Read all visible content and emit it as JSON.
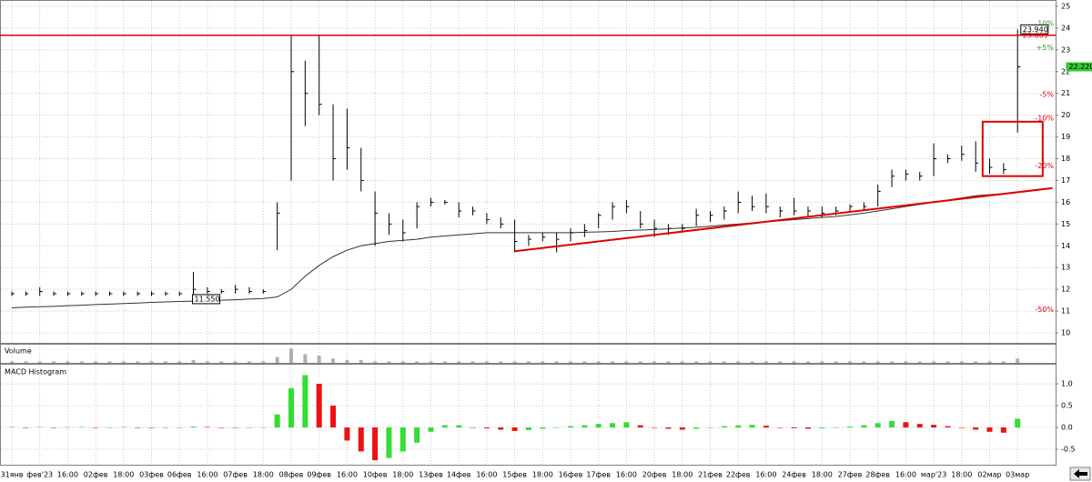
{
  "chart_data": [
    {
      "type": "ohlc",
      "categories": [
        "31янв",
        null,
        "фев'23",
        null,
        "16:00",
        null,
        "02фев",
        null,
        "18:00",
        null,
        "03фев",
        null,
        "06фев",
        null,
        "16:00",
        null,
        "07фев",
        null,
        "18:00",
        null,
        "08фев",
        null,
        "09фев",
        null,
        "16:00",
        null,
        "10фев",
        null,
        "18:00",
        null,
        "13фев",
        null,
        "14фев",
        null,
        "16:00",
        null,
        "15фев",
        null,
        "18:00",
        null,
        "16фев",
        null,
        "17фев",
        null,
        "16:00",
        null,
        "20фев",
        null,
        "18:00",
        null,
        "21фев",
        null,
        "22фев",
        null,
        "16:00",
        null,
        "24фев",
        null,
        "18:00",
        null,
        "27фев",
        null,
        "28фев",
        null,
        "16:00",
        null,
        "мар'23",
        null,
        "18:00",
        null,
        "02мар",
        null,
        "03мар"
      ],
      "high": [
        11.9,
        11.9,
        12.1,
        11.9,
        11.9,
        11.9,
        11.9,
        11.9,
        11.9,
        11.9,
        11.9,
        11.9,
        11.9,
        12.8,
        12.1,
        12.0,
        12.2,
        12.1,
        12.0,
        16.0,
        23.7,
        22.5,
        23.7,
        20.5,
        20.3,
        18.5,
        16.5,
        15.5,
        15.2,
        16.0,
        16.2,
        16.1,
        16.0,
        15.8,
        15.5,
        15.3,
        15.2,
        14.5,
        14.6,
        14.6,
        14.8,
        15.0,
        15.5,
        16.0,
        16.1,
        15.6,
        15.2,
        15.0,
        15.0,
        15.7,
        15.6,
        15.8,
        16.5,
        16.3,
        16.4,
        15.8,
        16.2,
        15.8,
        15.8,
        15.8,
        15.9,
        16.0,
        16.8,
        17.5,
        17.5,
        17.4,
        18.7,
        18.2,
        18.6,
        18.8,
        18.0,
        17.8,
        23.94
      ],
      "low": [
        11.7,
        11.7,
        11.7,
        11.7,
        11.7,
        11.7,
        11.7,
        11.7,
        11.7,
        11.7,
        11.7,
        11.7,
        11.7,
        11.6,
        11.8,
        11.8,
        11.8,
        11.8,
        11.8,
        13.8,
        17.0,
        19.5,
        20.0,
        17.0,
        17.5,
        16.5,
        14.0,
        14.5,
        14.2,
        14.8,
        15.8,
        15.9,
        15.3,
        15.4,
        15.0,
        14.8,
        13.7,
        14.0,
        14.2,
        13.7,
        14.2,
        14.4,
        14.8,
        15.2,
        15.5,
        14.8,
        14.4,
        14.5,
        14.6,
        14.9,
        15.1,
        15.2,
        15.5,
        15.6,
        15.5,
        15.3,
        15.4,
        15.3,
        15.3,
        15.4,
        15.6,
        15.6,
        15.8,
        16.7,
        17.0,
        17.0,
        17.2,
        17.8,
        17.9,
        17.4,
        17.3,
        17.3,
        19.2
      ],
      "close": [
        11.8,
        11.8,
        11.9,
        11.8,
        11.8,
        11.8,
        11.8,
        11.8,
        11.8,
        11.8,
        11.8,
        11.8,
        11.8,
        12.0,
        11.9,
        11.9,
        12.0,
        11.9,
        11.9,
        15.5,
        22.0,
        21.0,
        20.5,
        18.0,
        18.5,
        17.0,
        15.5,
        15.0,
        14.6,
        15.8,
        16.0,
        16.0,
        15.6,
        15.6,
        15.2,
        15.0,
        14.2,
        14.3,
        14.4,
        14.3,
        14.6,
        14.7,
        15.4,
        15.8,
        15.8,
        15.0,
        14.8,
        14.8,
        14.8,
        15.4,
        15.4,
        15.6,
        16.0,
        15.8,
        15.8,
        15.6,
        15.6,
        15.6,
        15.5,
        15.6,
        15.8,
        15.8,
        16.5,
        17.2,
        17.3,
        17.2,
        18.0,
        18.0,
        18.2,
        17.8,
        17.6,
        17.5,
        22.22
      ],
      "color": "#000000",
      "ma": [
        11.15,
        11.18,
        11.2,
        11.22,
        11.25,
        11.27,
        11.3,
        11.32,
        11.35,
        11.37,
        11.4,
        11.42,
        11.44,
        11.46,
        11.48,
        11.5,
        11.52,
        11.55,
        11.58,
        11.65,
        12.0,
        12.6,
        13.1,
        13.5,
        13.8,
        14.0,
        14.1,
        14.2,
        14.25,
        14.3,
        14.4,
        14.45,
        14.5,
        14.55,
        14.6,
        14.6,
        14.6,
        14.6,
        14.6,
        14.6,
        14.6,
        14.62,
        14.64,
        14.66,
        14.7,
        14.72,
        14.75,
        14.78,
        14.82,
        14.85,
        14.9,
        14.95,
        15.0,
        15.05,
        15.1,
        15.15,
        15.2,
        15.25,
        15.3,
        15.35,
        15.42,
        15.5,
        15.6,
        15.7,
        15.8,
        15.9,
        16.0,
        16.1,
        16.2,
        16.3,
        16.35,
        16.4,
        16.45
      ],
      "ma_color": "#333333",
      "ylim": [
        9.5,
        25.29
      ],
      "yticks": [
        10,
        11,
        12,
        13,
        14,
        15,
        16,
        17,
        18,
        19,
        20,
        21,
        22,
        23,
        24,
        25
      ],
      "grid": true,
      "hline": {
        "value": 23.669,
        "color": "#e00000"
      },
      "trend_line": {
        "points": [
          [
            36,
            13.75
          ],
          [
            74.5,
            16.65
          ]
        ],
        "color": "#e00000"
      },
      "box": {
        "x": [
          69.5,
          73.8
        ],
        "y": [
          17.2,
          19.7
        ],
        "color": "#e00000"
      },
      "levels": [
        {
          "value": 24.2,
          "label": "10%",
          "color": "#2a9a2a"
        },
        {
          "value": 23.1,
          "label": "+5%",
          "color": "#2a9a2a"
        },
        {
          "value": 20.94,
          "label": "-5%",
          "color": "#e00000"
        },
        {
          "value": 19.85,
          "label": "-10%",
          "color": "#e00000"
        },
        {
          "value": 17.67,
          "label": "-20%",
          "color": "#e00000"
        },
        {
          "value": 11.07,
          "label": "-50%",
          "color": "#e00000"
        }
      ],
      "price_labels": [
        {
          "value": 23.94,
          "label": "23.940",
          "at": 72.3,
          "style": "box"
        },
        {
          "value": 23.669,
          "label": "23.669",
          "at": 72.3,
          "style": "red"
        },
        {
          "value": 22.22,
          "label": "22.220",
          "at": 75.6,
          "style": "last"
        },
        {
          "value": 11.55,
          "label": "11.550",
          "at": 13,
          "style": "box"
        }
      ]
    },
    {
      "type": "bar",
      "title": "Volume",
      "values": [
        1,
        1,
        1,
        1,
        1,
        1,
        1,
        1,
        1,
        1,
        1,
        1,
        1,
        2,
        1,
        1,
        1,
        1,
        1,
        4,
        10,
        6,
        5,
        3,
        2,
        2,
        1,
        1,
        1,
        1,
        1,
        1,
        1,
        1,
        1,
        1,
        1,
        1,
        1,
        1,
        1,
        1,
        1,
        1,
        1,
        1,
        1,
        1,
        1,
        1,
        1,
        1,
        1,
        1,
        1,
        1,
        1,
        1,
        1,
        1,
        1,
        1,
        1,
        1,
        1,
        1,
        1,
        1,
        1,
        1,
        1,
        1,
        3
      ],
      "color": "#b0b0b0",
      "ylim": [
        0,
        12
      ]
    },
    {
      "type": "histogram",
      "title": "MACD Histogram",
      "values": [
        0.01,
        -0.01,
        0.01,
        0.0,
        0.01,
        0.01,
        -0.01,
        0.0,
        0.01,
        0.0,
        -0.01,
        0.0,
        0.0,
        0.02,
        0.01,
        0.0,
        -0.01,
        0.0,
        0.0,
        0.3,
        0.9,
        1.2,
        1.0,
        0.5,
        -0.3,
        -0.55,
        -0.75,
        -0.7,
        -0.55,
        -0.35,
        -0.1,
        0.05,
        0.05,
        0.0,
        -0.02,
        -0.05,
        -0.08,
        -0.06,
        -0.03,
        0.0,
        0.03,
        0.05,
        0.08,
        0.1,
        0.12,
        0.05,
        0.0,
        -0.03,
        -0.05,
        -0.03,
        0.0,
        0.03,
        0.05,
        0.06,
        0.04,
        0.0,
        -0.02,
        -0.03,
        -0.02,
        0.0,
        0.02,
        0.05,
        0.1,
        0.15,
        0.12,
        0.08,
        0.06,
        0.03,
        0.0,
        -0.05,
        -0.1,
        -0.12,
        0.2
      ],
      "up_color": "#33dd33",
      "down_color": "#ee1111",
      "ylim": [
        -0.875,
        1.46
      ],
      "yticks": [
        {
          "value": 1,
          "label": "1.0"
        },
        0.5,
        {
          "value": 0,
          "label": "0.0"
        },
        -0.5
      ],
      "grid": true
    }
  ]
}
